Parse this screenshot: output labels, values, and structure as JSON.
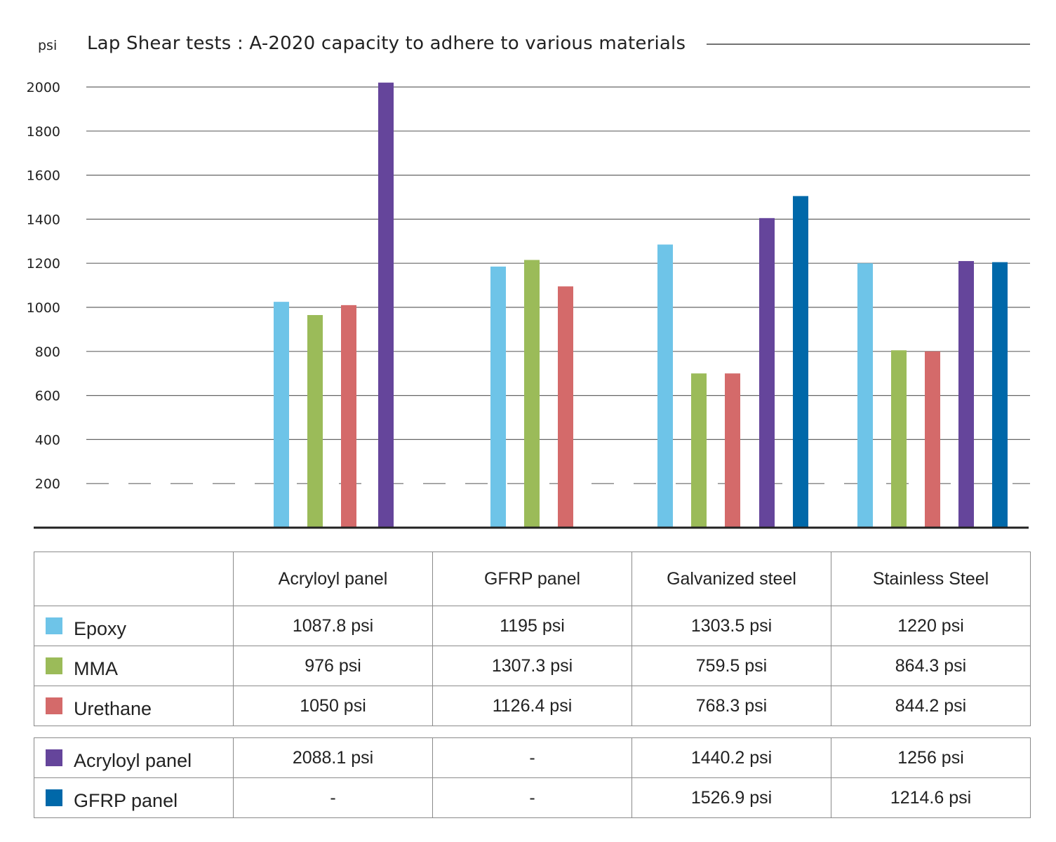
{
  "chart_data": {
    "type": "bar",
    "title": "Lap Shear tests : A-2020 capacity to adhere to various materials",
    "ylabel": "psi",
    "ylim": [
      0,
      2000
    ],
    "yticks": [
      "200",
      "400",
      "600",
      "800",
      "1000",
      "1200",
      "1400",
      "1600",
      "1800",
      "2000"
    ],
    "reference_line": 200,
    "categories": [
      "Acryloyl panel",
      "GFRP panel",
      "Galvanized steel",
      "Stainless Steel"
    ],
    "series": [
      {
        "name": "Epoxy",
        "color": "#6ec4e8",
        "values": [
          1025,
          1185,
          1285,
          1200
        ]
      },
      {
        "name": "MMA",
        "color": "#9bbb59",
        "values": [
          965,
          1215,
          700,
          805
        ]
      },
      {
        "name": "Urethane",
        "color": "#d46a6a",
        "values": [
          1010,
          1095,
          700,
          800
        ]
      },
      {
        "name": "Acryloyl panel",
        "color": "#65459b",
        "values": [
          2020,
          null,
          1405,
          1210
        ]
      },
      {
        "name": "GFRP panel",
        "color": "#0068a9",
        "values": [
          null,
          null,
          1505,
          1205
        ]
      }
    ]
  },
  "table": {
    "header": [
      "",
      "Acryloyl panel",
      "GFRP panel",
      "Galvanized steel",
      "Stainless Steel"
    ],
    "group1": [
      {
        "series": "Epoxy",
        "color": "#6ec4e8",
        "cells": [
          "1087.8 psi",
          "1195 psi",
          "1303.5 psi",
          "1220 psi"
        ]
      },
      {
        "series": "MMA",
        "color": "#9bbb59",
        "cells": [
          "976 psi",
          "1307.3 psi",
          "759.5 psi",
          "864.3 psi"
        ]
      },
      {
        "series": "Urethane",
        "color": "#d46a6a",
        "cells": [
          "1050 psi",
          "1126.4 psi",
          "768.3 psi",
          "844.2 psi"
        ]
      }
    ],
    "group2": [
      {
        "series": "Acryloyl panel",
        "color": "#65459b",
        "cells": [
          "2088.1 psi",
          "-",
          "1440.2 psi",
          "1256 psi"
        ]
      },
      {
        "series": "GFRP panel",
        "color": "#0068a9",
        "cells": [
          "-",
          "-",
          "1526.9 psi",
          "1214.6 psi"
        ]
      }
    ]
  }
}
